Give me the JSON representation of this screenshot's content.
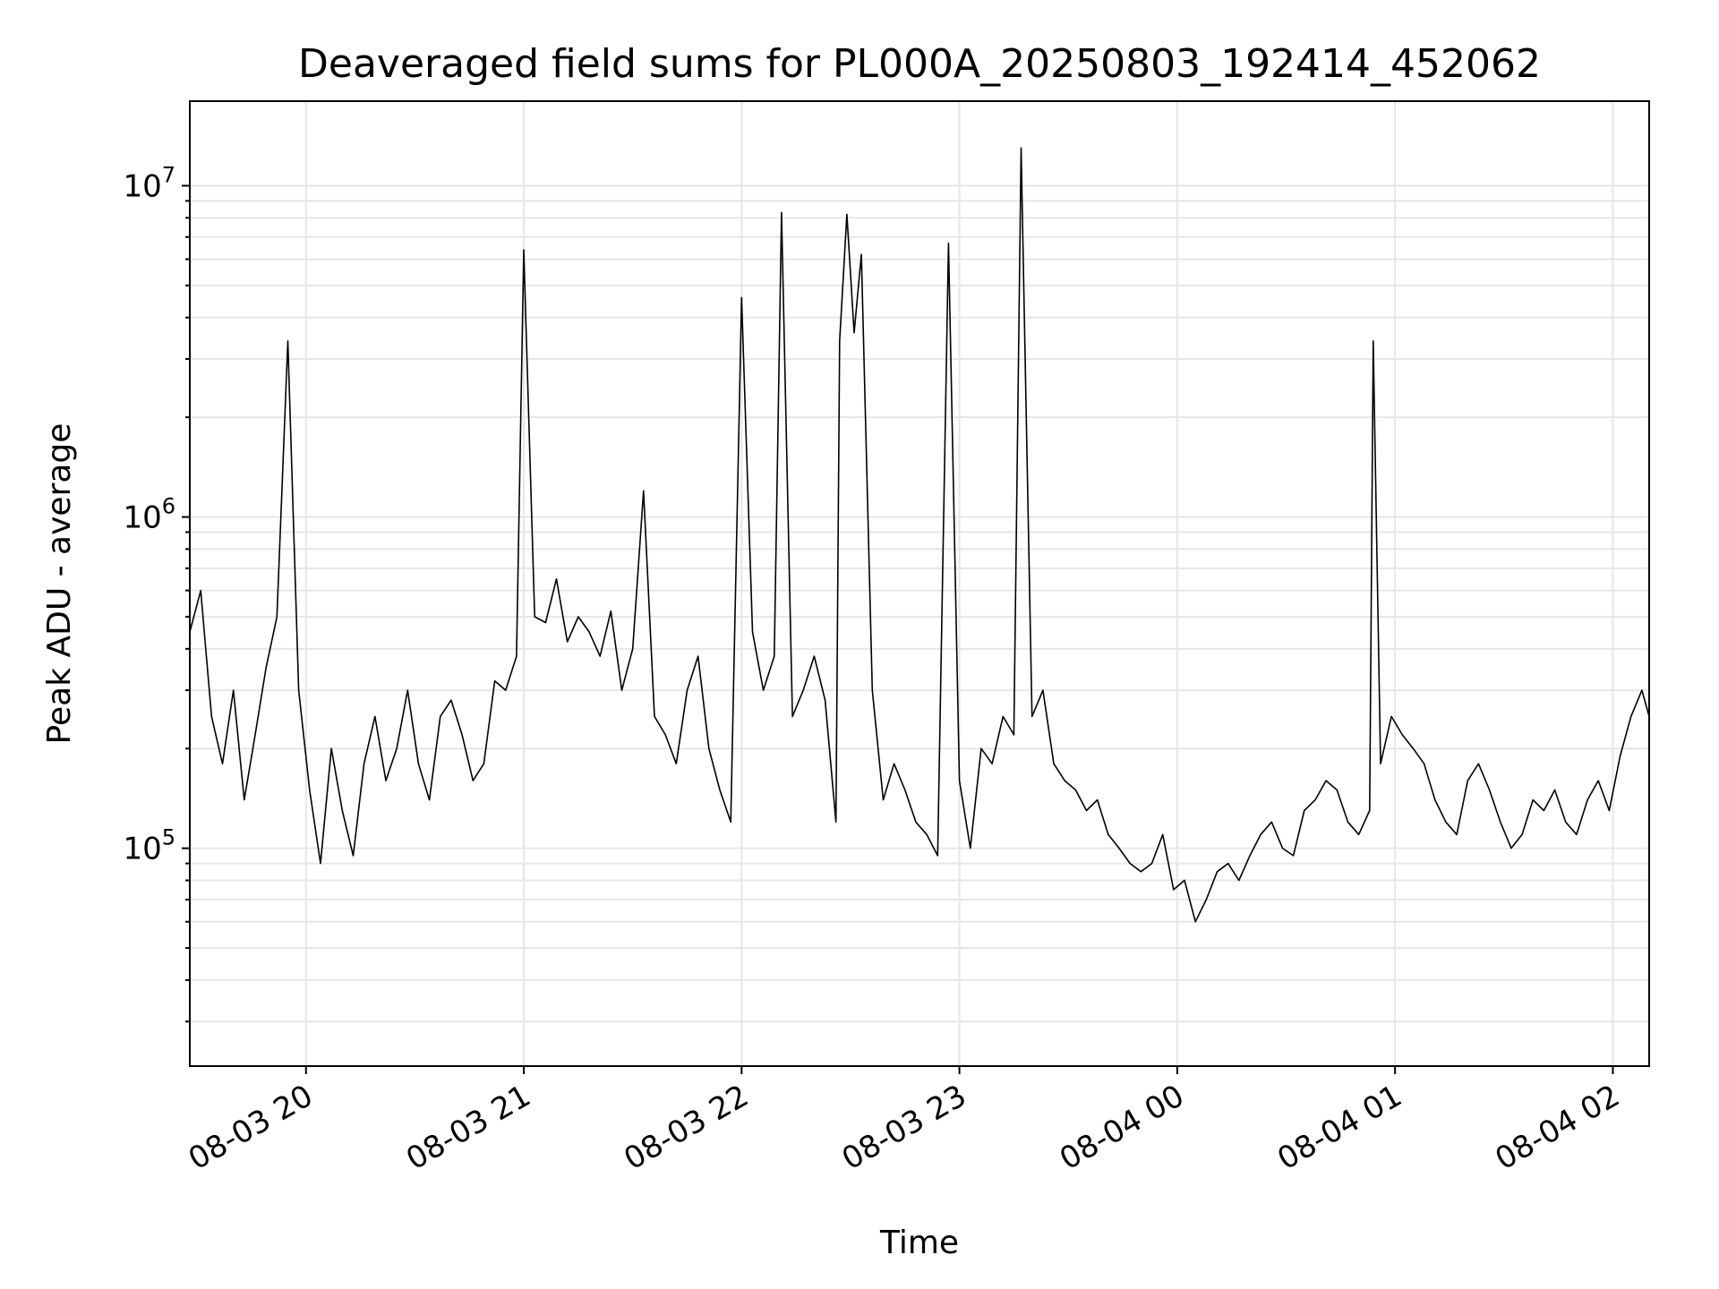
{
  "chart_data": {
    "type": "line",
    "title": "Deaveraged field sums for PL000A_20250803_192414_452062",
    "xlabel": "Time",
    "ylabel": "Peak ADU - average",
    "yscale": "log",
    "grid": true,
    "line_color": "#000000",
    "xlim": [
      "2025-08-03 19:28",
      "2025-08-04 02:10"
    ],
    "ylim": [
      22000,
      18000000
    ],
    "x_ticks": [
      {
        "value": "2025-08-03 20:00",
        "label": "08-03 20"
      },
      {
        "value": "2025-08-03 21:00",
        "label": "08-03 21"
      },
      {
        "value": "2025-08-03 22:00",
        "label": "08-03 22"
      },
      {
        "value": "2025-08-03 23:00",
        "label": "08-03 23"
      },
      {
        "value": "2025-08-04 00:00",
        "label": "08-04 00"
      },
      {
        "value": "2025-08-04 01:00",
        "label": "08-04 01"
      },
      {
        "value": "2025-08-04 02:00",
        "label": "08-04 02"
      }
    ],
    "y_ticks": [
      {
        "value": 100000,
        "base": "10",
        "exp": "5"
      },
      {
        "value": 1000000,
        "base": "10",
        "exp": "6"
      },
      {
        "value": 10000000,
        "base": "10",
        "exp": "7"
      }
    ],
    "series": [
      {
        "x": [
          "2025-08-03 19:28",
          "2025-08-03 19:31",
          "2025-08-03 19:34",
          "2025-08-03 19:37",
          "2025-08-03 19:40",
          "2025-08-03 19:43",
          "2025-08-03 19:46",
          "2025-08-03 19:49",
          "2025-08-03 19:52",
          "2025-08-03 19:55",
          "2025-08-03 19:58",
          "2025-08-03 20:01",
          "2025-08-03 20:04",
          "2025-08-03 20:07",
          "2025-08-03 20:10",
          "2025-08-03 20:13",
          "2025-08-03 20:16",
          "2025-08-03 20:19",
          "2025-08-03 20:22",
          "2025-08-03 20:25",
          "2025-08-03 20:28",
          "2025-08-03 20:31",
          "2025-08-03 20:34",
          "2025-08-03 20:37",
          "2025-08-03 20:40",
          "2025-08-03 20:43",
          "2025-08-03 20:46",
          "2025-08-03 20:49",
          "2025-08-03 20:52",
          "2025-08-03 20:55",
          "2025-08-03 20:58",
          "2025-08-03 21:00",
          "2025-08-03 21:03",
          "2025-08-03 21:06",
          "2025-08-03 21:09",
          "2025-08-03 21:12",
          "2025-08-03 21:15",
          "2025-08-03 21:18",
          "2025-08-03 21:21",
          "2025-08-03 21:24",
          "2025-08-03 21:27",
          "2025-08-03 21:30",
          "2025-08-03 21:33",
          "2025-08-03 21:36",
          "2025-08-03 21:39",
          "2025-08-03 21:42",
          "2025-08-03 21:45",
          "2025-08-03 21:48",
          "2025-08-03 21:51",
          "2025-08-03 21:54",
          "2025-08-03 21:57",
          "2025-08-03 22:00",
          "2025-08-03 22:03",
          "2025-08-03 22:06",
          "2025-08-03 22:09",
          "2025-08-03 22:11",
          "2025-08-03 22:14",
          "2025-08-03 22:17",
          "2025-08-03 22:20",
          "2025-08-03 22:23",
          "2025-08-03 22:26",
          "2025-08-03 22:27",
          "2025-08-03 22:29",
          "2025-08-03 22:31",
          "2025-08-03 22:33",
          "2025-08-03 22:36",
          "2025-08-03 22:39",
          "2025-08-03 22:42",
          "2025-08-03 22:45",
          "2025-08-03 22:48",
          "2025-08-03 22:51",
          "2025-08-03 22:54",
          "2025-08-03 22:57",
          "2025-08-03 23:00",
          "2025-08-03 23:03",
          "2025-08-03 23:06",
          "2025-08-03 23:09",
          "2025-08-03 23:12",
          "2025-08-03 23:15",
          "2025-08-03 23:17",
          "2025-08-03 23:20",
          "2025-08-03 23:23",
          "2025-08-03 23:26",
          "2025-08-03 23:29",
          "2025-08-03 23:32",
          "2025-08-03 23:35",
          "2025-08-03 23:38",
          "2025-08-03 23:41",
          "2025-08-03 23:44",
          "2025-08-03 23:47",
          "2025-08-03 23:50",
          "2025-08-03 23:53",
          "2025-08-03 23:56",
          "2025-08-03 23:59",
          "2025-08-04 00:02",
          "2025-08-04 00:05",
          "2025-08-04 00:08",
          "2025-08-04 00:11",
          "2025-08-04 00:14",
          "2025-08-04 00:17",
          "2025-08-04 00:20",
          "2025-08-04 00:23",
          "2025-08-04 00:26",
          "2025-08-04 00:29",
          "2025-08-04 00:32",
          "2025-08-04 00:35",
          "2025-08-04 00:38",
          "2025-08-04 00:41",
          "2025-08-04 00:44",
          "2025-08-04 00:47",
          "2025-08-04 00:50",
          "2025-08-04 00:53",
          "2025-08-04 00:54",
          "2025-08-04 00:56",
          "2025-08-04 00:59",
          "2025-08-04 01:02",
          "2025-08-04 01:05",
          "2025-08-04 01:08",
          "2025-08-04 01:11",
          "2025-08-04 01:14",
          "2025-08-04 01:17",
          "2025-08-04 01:20",
          "2025-08-04 01:23",
          "2025-08-04 01:26",
          "2025-08-04 01:29",
          "2025-08-04 01:32",
          "2025-08-04 01:35",
          "2025-08-04 01:38",
          "2025-08-04 01:41",
          "2025-08-04 01:44",
          "2025-08-04 01:47",
          "2025-08-04 01:50",
          "2025-08-04 01:53",
          "2025-08-04 01:56",
          "2025-08-04 01:59",
          "2025-08-04 02:02",
          "2025-08-04 02:05",
          "2025-08-04 02:08",
          "2025-08-04 02:10"
        ],
        "values": [
          450000,
          600000,
          250000,
          180000,
          300000,
          140000,
          220000,
          350000,
          500000,
          3400000,
          300000,
          150000,
          90000,
          200000,
          130000,
          95000,
          180000,
          250000,
          160000,
          200000,
          300000,
          180000,
          140000,
          250000,
          280000,
          220000,
          160000,
          180000,
          320000,
          300000,
          380000,
          6400000,
          500000,
          480000,
          650000,
          420000,
          500000,
          450000,
          380000,
          520000,
          300000,
          400000,
          1200000,
          250000,
          220000,
          180000,
          300000,
          380000,
          200000,
          150000,
          120000,
          4600000,
          450000,
          300000,
          380000,
          8300000,
          250000,
          300000,
          380000,
          280000,
          120000,
          3400000,
          8200000,
          3600000,
          6200000,
          300000,
          140000,
          180000,
          150000,
          120000,
          110000,
          95000,
          6700000,
          160000,
          100000,
          200000,
          180000,
          250000,
          220000,
          13000000,
          250000,
          300000,
          180000,
          160000,
          150000,
          130000,
          140000,
          110000,
          100000,
          90000,
          85000,
          90000,
          110000,
          75000,
          80000,
          60000,
          70000,
          85000,
          90000,
          80000,
          95000,
          110000,
          120000,
          100000,
          95000,
          130000,
          140000,
          160000,
          150000,
          120000,
          110000,
          130000,
          3400000,
          180000,
          250000,
          220000,
          200000,
          180000,
          140000,
          120000,
          110000,
          160000,
          180000,
          150000,
          120000,
          100000,
          110000,
          140000,
          130000,
          150000,
          120000,
          110000,
          140000,
          160000,
          130000,
          190000,
          250000,
          300000,
          250000
        ]
      }
    ]
  }
}
